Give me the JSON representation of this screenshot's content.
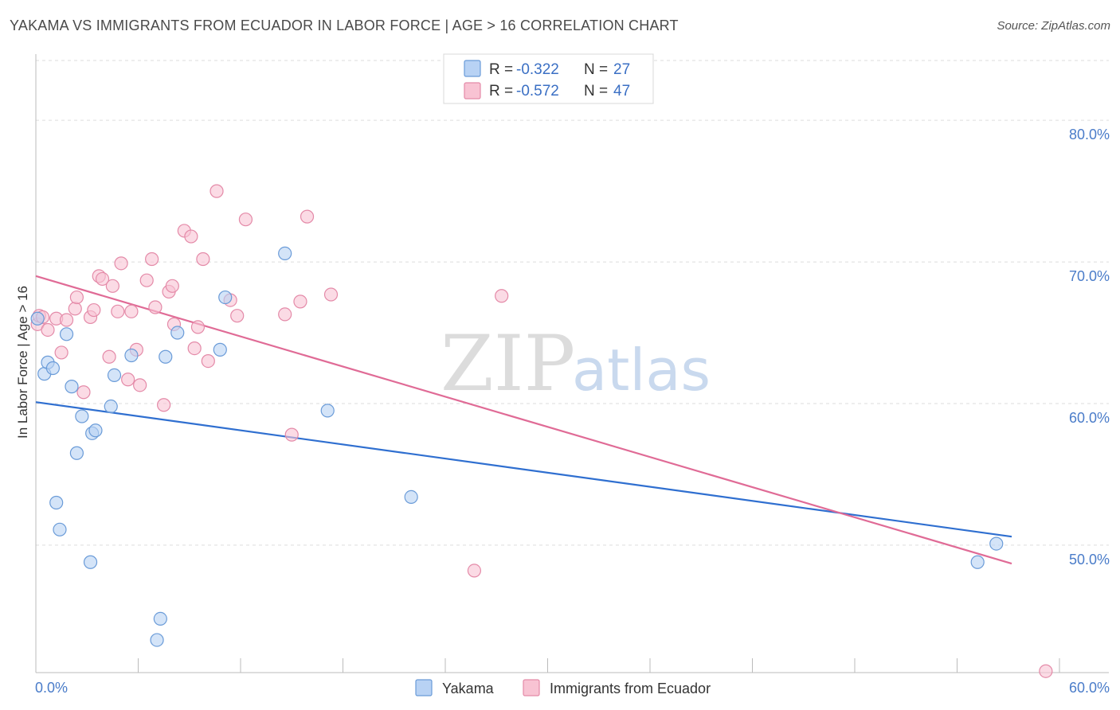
{
  "header": {
    "title": "YAKAMA VS IMMIGRANTS FROM ECUADOR IN LABOR FORCE | AGE > 16 CORRELATION CHART",
    "source": "Source: ZipAtlas.com"
  },
  "watermark": {
    "zip": "ZIP",
    "atlas": "atlas"
  },
  "colors": {
    "yakama_fill": "#b8d2f4",
    "yakama_stroke": "#6a9bd8",
    "yakama_line": "#2f6fd0",
    "ecuador_fill": "#f8c3d3",
    "ecuador_stroke": "#e48aa8",
    "ecuador_line": "#e06b96",
    "axis_label": "#4a7cc9",
    "grid": "#dddddd"
  },
  "legend": {
    "rows": [
      {
        "r_label": "R =",
        "r_value": "-0.322",
        "n_label": "N =",
        "n_value": "27"
      },
      {
        "r_label": "R =",
        "r_value": "-0.572",
        "n_label": "N =",
        "n_value": "47"
      }
    ]
  },
  "chart_data": {
    "type": "scatter",
    "title": "YAKAMA VS IMMIGRANTS FROM ECUADOR IN LABOR FORCE | AGE > 16 CORRELATION CHART",
    "xlabel": "",
    "ylabel": "In Labor Force | Age > 16",
    "xlim": [
      0,
      60
    ],
    "ylim": [
      41,
      84
    ],
    "x_tick_labels": [
      "0.0%",
      "60.0%"
    ],
    "y_ticks": [
      50,
      60,
      70,
      80
    ],
    "y_tick_labels": [
      "50.0%",
      "60.0%",
      "70.0%",
      "80.0%"
    ],
    "grid": true,
    "legend_position": "top-center",
    "series": [
      {
        "name": "Yakama",
        "points": [
          [
            0.1,
            66.0
          ],
          [
            0.5,
            62.1
          ],
          [
            0.7,
            62.9
          ],
          [
            1.0,
            62.5
          ],
          [
            1.2,
            53.0
          ],
          [
            1.4,
            51.1
          ],
          [
            1.8,
            64.9
          ],
          [
            2.1,
            61.2
          ],
          [
            2.4,
            56.5
          ],
          [
            2.7,
            59.1
          ],
          [
            3.2,
            48.8
          ],
          [
            3.3,
            57.9
          ],
          [
            3.5,
            58.1
          ],
          [
            4.4,
            59.8
          ],
          [
            4.6,
            62.0
          ],
          [
            5.6,
            63.4
          ],
          [
            7.1,
            43.3
          ],
          [
            7.3,
            44.8
          ],
          [
            7.6,
            63.3
          ],
          [
            8.3,
            65.0
          ],
          [
            10.8,
            63.8
          ],
          [
            11.1,
            67.5
          ],
          [
            14.6,
            70.6
          ],
          [
            17.1,
            59.5
          ],
          [
            22.0,
            53.4
          ],
          [
            55.2,
            48.8
          ],
          [
            56.3,
            50.1
          ]
        ],
        "trend": {
          "x": [
            0,
            57.2
          ],
          "y": [
            60.1,
            50.6
          ]
        }
      },
      {
        "name": "Immigrants from Ecuador",
        "points": [
          [
            0.1,
            65.6
          ],
          [
            0.2,
            66.2
          ],
          [
            0.4,
            66.1
          ],
          [
            0.7,
            65.2
          ],
          [
            1.2,
            66.0
          ],
          [
            1.5,
            63.6
          ],
          [
            1.8,
            65.9
          ],
          [
            2.3,
            66.7
          ],
          [
            2.4,
            67.5
          ],
          [
            2.8,
            60.8
          ],
          [
            3.2,
            66.1
          ],
          [
            3.4,
            66.6
          ],
          [
            3.7,
            69.0
          ],
          [
            3.9,
            68.8
          ],
          [
            4.3,
            63.3
          ],
          [
            4.5,
            68.3
          ],
          [
            4.8,
            66.5
          ],
          [
            5.0,
            69.9
          ],
          [
            5.4,
            61.7
          ],
          [
            5.6,
            66.5
          ],
          [
            5.9,
            63.8
          ],
          [
            6.1,
            61.3
          ],
          [
            6.5,
            68.7
          ],
          [
            6.8,
            70.2
          ],
          [
            7.0,
            66.8
          ],
          [
            7.5,
            59.9
          ],
          [
            7.8,
            67.9
          ],
          [
            8.0,
            68.3
          ],
          [
            8.1,
            65.6
          ],
          [
            8.7,
            72.2
          ],
          [
            9.1,
            71.8
          ],
          [
            9.3,
            63.9
          ],
          [
            9.5,
            65.4
          ],
          [
            9.8,
            70.2
          ],
          [
            10.1,
            63.0
          ],
          [
            10.6,
            75.0
          ],
          [
            11.4,
            67.3
          ],
          [
            11.8,
            66.2
          ],
          [
            12.3,
            73.0
          ],
          [
            14.6,
            66.3
          ],
          [
            15.0,
            57.8
          ],
          [
            15.5,
            67.2
          ],
          [
            15.9,
            73.2
          ],
          [
            17.3,
            67.7
          ],
          [
            25.7,
            48.2
          ],
          [
            27.3,
            67.6
          ],
          [
            59.2,
            41.1
          ]
        ],
        "trend": {
          "x": [
            0,
            57.2
          ],
          "y": [
            69.0,
            48.7
          ]
        }
      }
    ]
  }
}
